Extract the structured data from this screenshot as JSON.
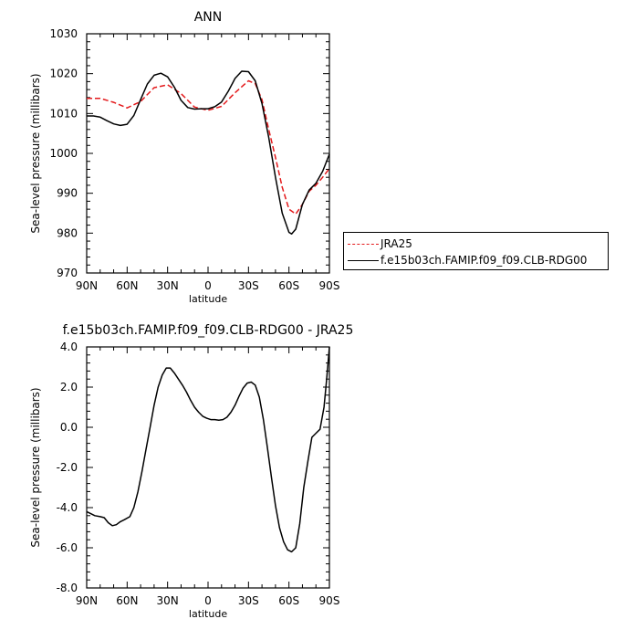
{
  "chart_data": [
    {
      "type": "line",
      "title": "ANN",
      "xlabel": "latitude",
      "ylabel": "Sea-level pressure (millibars)",
      "xlim": [
        90,
        -90
      ],
      "ylim": [
        970,
        1030
      ],
      "xticks": [
        90,
        60,
        30,
        0,
        -30,
        -60,
        -90
      ],
      "xtick_labels": [
        "90N",
        "60N",
        "30N",
        "0",
        "30S",
        "60S",
        "90S"
      ],
      "yticks": [
        970,
        980,
        990,
        1000,
        1010,
        1020,
        1030
      ],
      "ytick_labels": [
        "970",
        "980",
        "990",
        "1000",
        "1010",
        "1020",
        "1030"
      ],
      "grid": false,
      "legend_position": "right",
      "series": [
        {
          "name": "JRA25",
          "color": "#e41a1c",
          "style": "dashed",
          "x": [
            90,
            80,
            70,
            60,
            50,
            40,
            30,
            20,
            10,
            0,
            -10,
            -20,
            -30,
            -35,
            -40,
            -45,
            -50,
            -55,
            -60,
            -65,
            -70,
            -75,
            -80,
            -85,
            -90
          ],
          "y": [
            1013.8,
            1013.8,
            1012.8,
            1011.4,
            1013.0,
            1016.5,
            1017.2,
            1015.0,
            1011.6,
            1010.8,
            1011.8,
            1015.2,
            1018.2,
            1017.5,
            1013.5,
            1006.0,
            999.0,
            991.5,
            986.0,
            984.8,
            987.2,
            990.5,
            992.0,
            994.0,
            996.2
          ]
        },
        {
          "name": "f.e15b03ch.FAMIP.f09_f09.CLB-RDG00",
          "color": "#000000",
          "style": "solid",
          "x": [
            90,
            85,
            80,
            75,
            70,
            65,
            60,
            55,
            50,
            45,
            40,
            35,
            30,
            25,
            20,
            15,
            10,
            5,
            0,
            -5,
            -10,
            -15,
            -20,
            -25,
            -30,
            -35,
            -40,
            -45,
            -50,
            -55,
            -60,
            -62,
            -65,
            -70,
            -75,
            -80,
            -85,
            -90
          ],
          "y": [
            1009.4,
            1009.4,
            1009.1,
            1008.2,
            1007.4,
            1007.0,
            1007.3,
            1009.5,
            1013.5,
            1017.4,
            1019.6,
            1020.1,
            1019.2,
            1016.6,
            1013.3,
            1011.5,
            1011.1,
            1011.2,
            1011.2,
            1011.7,
            1012.9,
            1015.6,
            1018.8,
            1020.6,
            1020.5,
            1018.2,
            1012.5,
            1004.0,
            994.0,
            985.0,
            980.2,
            979.8,
            981.0,
            987.2,
            990.8,
            992.5,
            995.5,
            999.8
          ]
        }
      ]
    },
    {
      "type": "line",
      "title": "f.e15b03ch.FAMIP.f09_f09.CLB-RDG00 - JRA25",
      "xlabel": "latitude",
      "ylabel": "Sea-level pressure (millibars)",
      "xlim": [
        90,
        -90
      ],
      "ylim": [
        -8,
        4
      ],
      "xticks": [
        90,
        60,
        30,
        0,
        -30,
        -60,
        -90
      ],
      "xtick_labels": [
        "90N",
        "60N",
        "30N",
        "0",
        "30S",
        "60S",
        "90S"
      ],
      "yticks": [
        -8,
        -6,
        -4,
        -2,
        0,
        2,
        4
      ],
      "ytick_labels": [
        "-8.0",
        "-6.0",
        "-4.0",
        "-2.0",
        "0.0",
        "2.0",
        "4.0"
      ],
      "grid": false,
      "series": [
        {
          "color": "#000000",
          "style": "solid",
          "x": [
            90,
            87,
            84,
            80,
            77,
            74,
            71,
            68,
            65,
            62,
            58,
            55,
            52,
            49,
            46,
            43,
            40,
            37,
            34,
            31,
            28,
            25,
            22,
            19,
            16,
            13,
            10,
            7,
            4,
            1,
            -2,
            -5,
            -8,
            -11,
            -14,
            -17,
            -20,
            -23,
            -26,
            -29,
            -32,
            -35,
            -38,
            -41,
            -44,
            -47,
            -50,
            -53,
            -56,
            -59,
            -62,
            -65,
            -68,
            -71,
            -74,
            -77,
            -80,
            -83,
            -86,
            -88,
            -90
          ],
          "y": [
            -4.2,
            -4.3,
            -4.4,
            -4.45,
            -4.5,
            -4.75,
            -4.9,
            -4.85,
            -4.7,
            -4.6,
            -4.45,
            -4.0,
            -3.2,
            -2.2,
            -1.1,
            0.0,
            1.1,
            2.0,
            2.6,
            2.95,
            2.95,
            2.7,
            2.4,
            2.1,
            1.75,
            1.35,
            1.0,
            0.75,
            0.55,
            0.45,
            0.38,
            0.38,
            0.35,
            0.38,
            0.5,
            0.75,
            1.1,
            1.55,
            1.95,
            2.2,
            2.25,
            2.1,
            1.5,
            0.4,
            -1.0,
            -2.5,
            -3.9,
            -5.0,
            -5.7,
            -6.1,
            -6.2,
            -6.0,
            -4.8,
            -3.0,
            -1.7,
            -0.5,
            -0.3,
            -0.1,
            1.0,
            2.4,
            4.0
          ]
        }
      ]
    }
  ]
}
